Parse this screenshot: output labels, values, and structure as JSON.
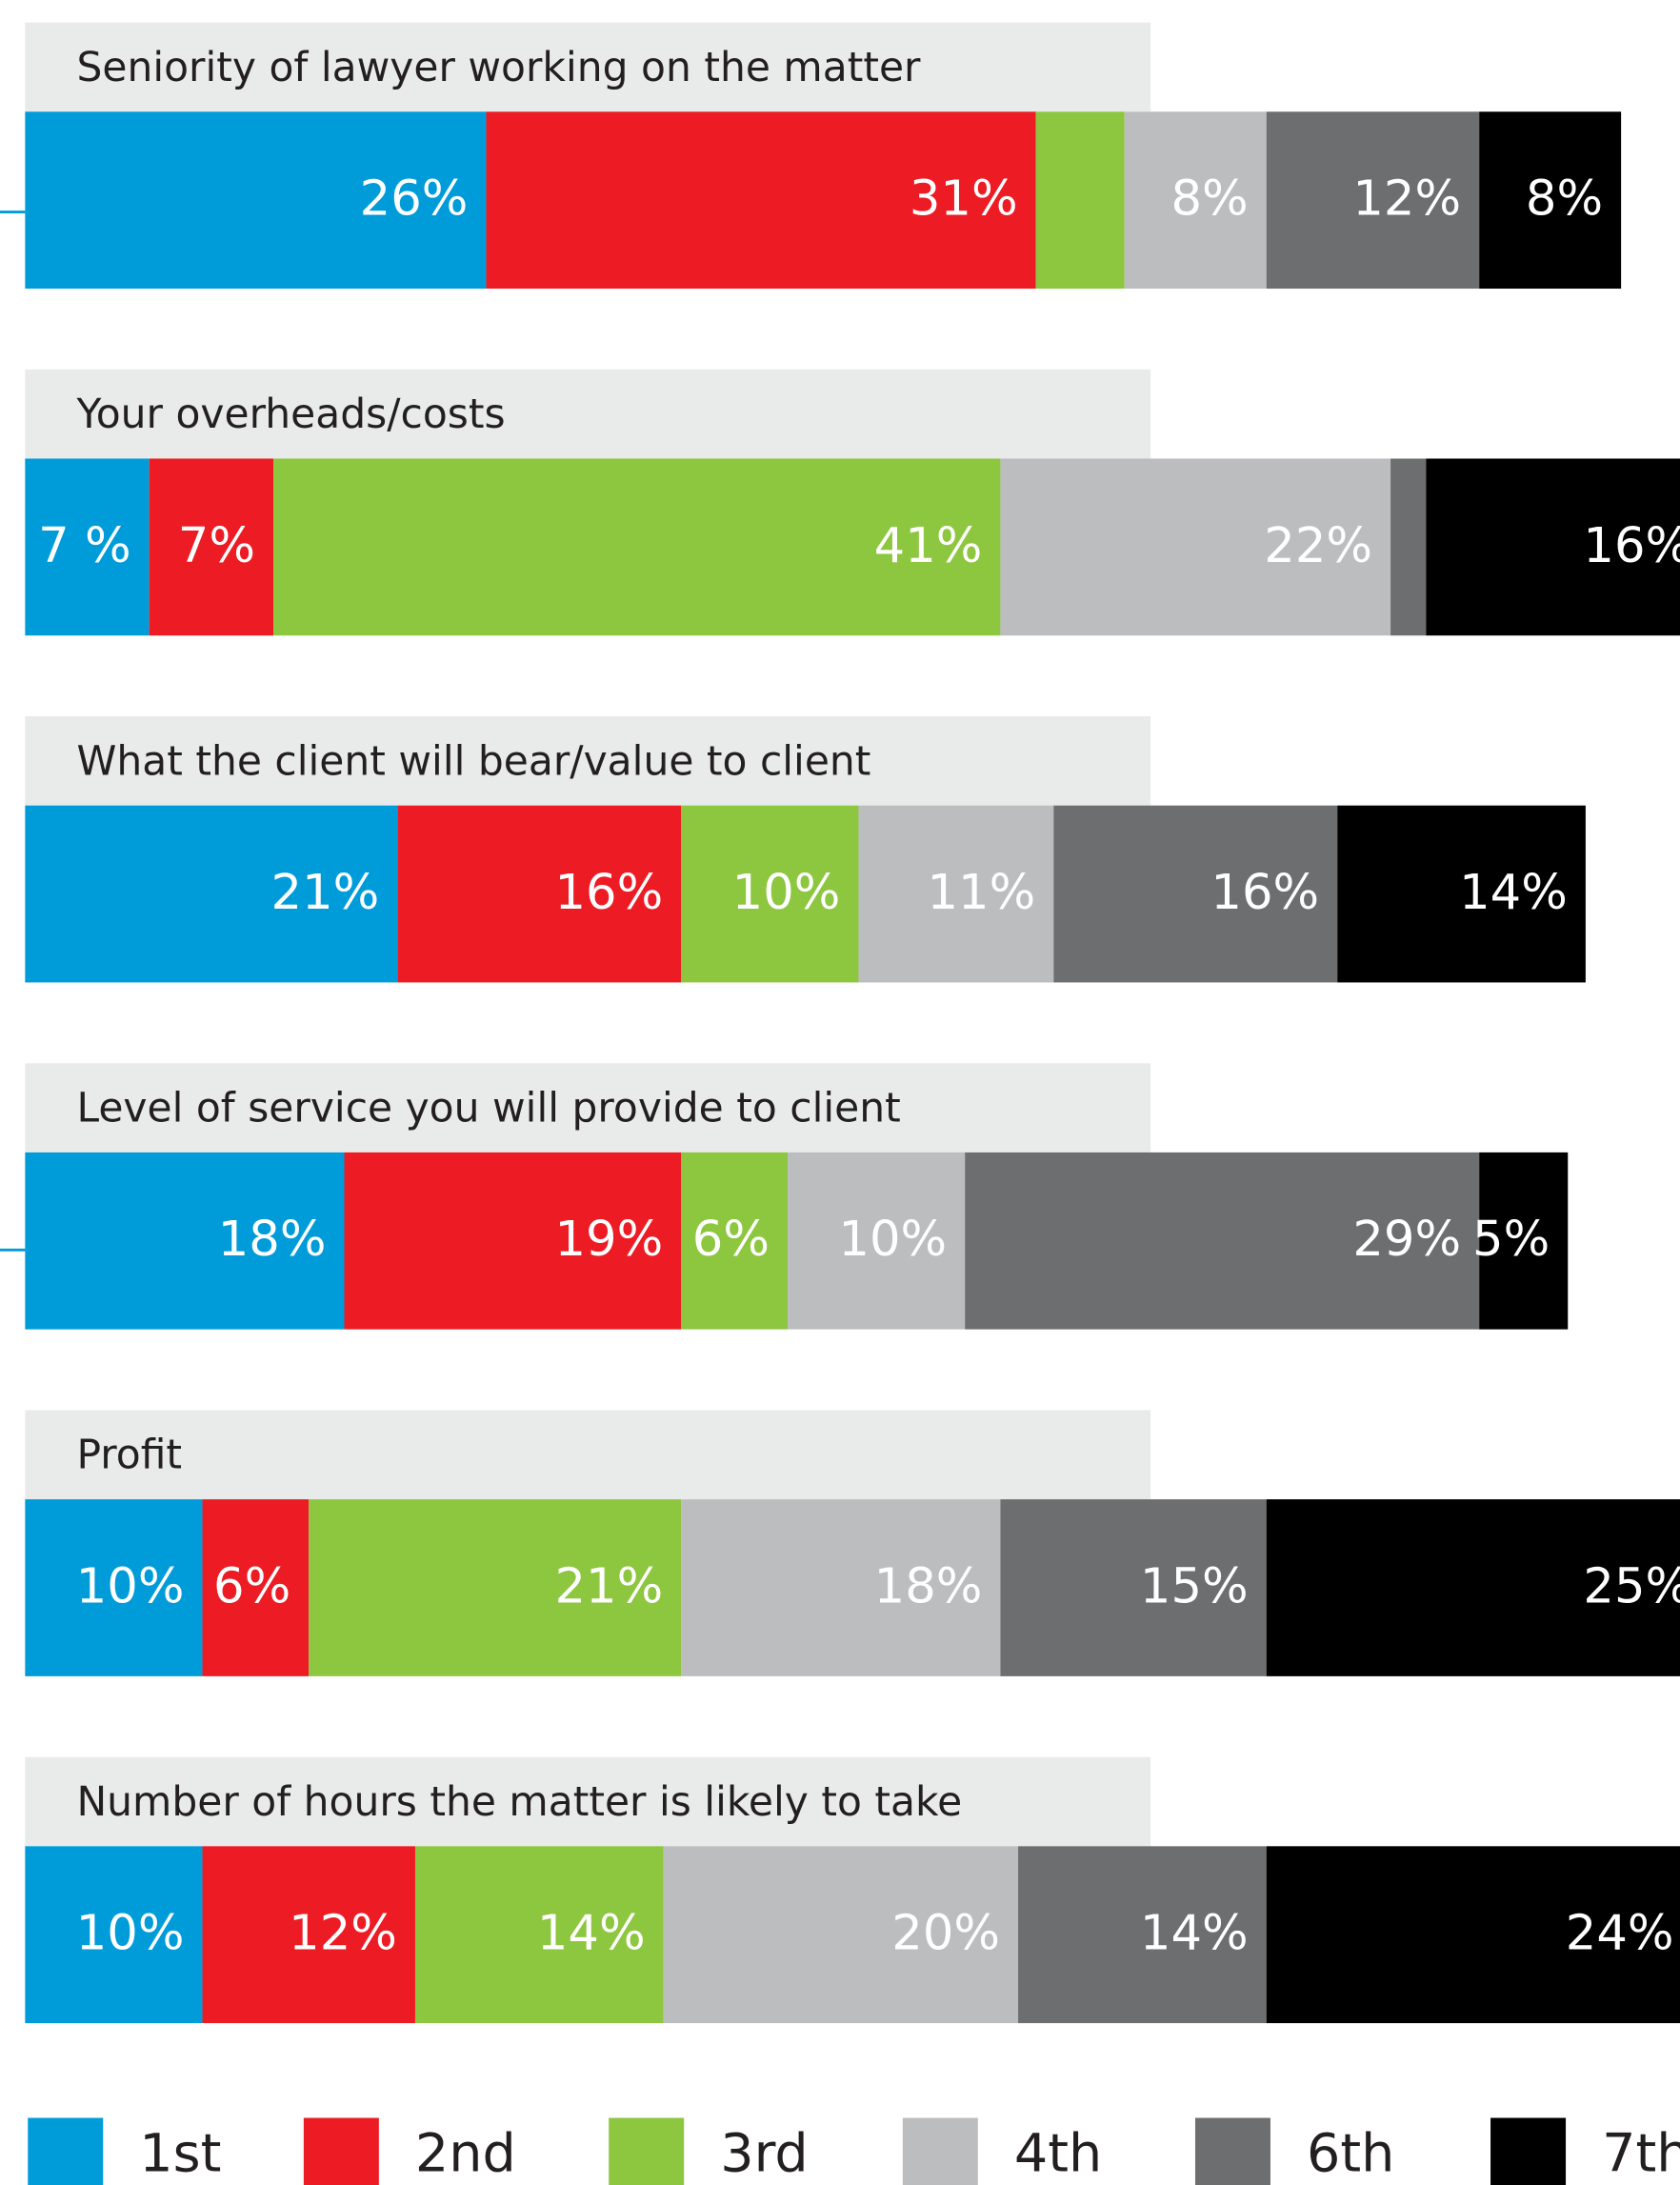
{
  "chart_data": {
    "type": "stacked-bar-horizontal",
    "categories": [
      "Seniority of lawyer working on the matter",
      "Your overheads/costs",
      "What the client will bear/value to client",
      "Level of service you will provide to client",
      "Profit",
      "Number of hours the matter is likely to take"
    ],
    "series": [
      {
        "name": "1st",
        "color": "#009cd9",
        "values": [
          26,
          7,
          21,
          18,
          10,
          10
        ],
        "value_labels": [
          "26%",
          "7 %",
          "21%",
          "18%",
          "10%",
          "10%"
        ]
      },
      {
        "name": "2nd",
        "color": "#ed1c24",
        "values": [
          31,
          7,
          16,
          19,
          6,
          12
        ],
        "value_labels": [
          "31%",
          "7%",
          "16%",
          "19%",
          "6%",
          "12%"
        ]
      },
      {
        "name": "3rd",
        "color": "#8dc63f",
        "values": [
          5,
          41,
          10,
          6,
          21,
          14
        ],
        "value_labels": [
          null,
          "41%",
          "10%",
          "6%",
          "21%",
          "14%"
        ]
      },
      {
        "name": "4th",
        "color": "#bcbdbf",
        "values": [
          8,
          22,
          11,
          10,
          18,
          20
        ],
        "value_labels": [
          "8%",
          "22%",
          "11%",
          "10%",
          "18%",
          "20%"
        ]
      },
      {
        "name": "6th",
        "color": "#6d6e70",
        "values": [
          12,
          2,
          16,
          29,
          15,
          14
        ],
        "value_labels": [
          "12%",
          null,
          "16%",
          "29%",
          "15%",
          "14%"
        ]
      },
      {
        "name": "7th",
        "color": "#000000",
        "values": [
          8,
          16,
          14,
          5,
          25,
          24
        ],
        "value_labels": [
          "8%",
          "16%",
          "14%",
          "5%",
          "25%",
          "24%"
        ]
      }
    ]
  }
}
